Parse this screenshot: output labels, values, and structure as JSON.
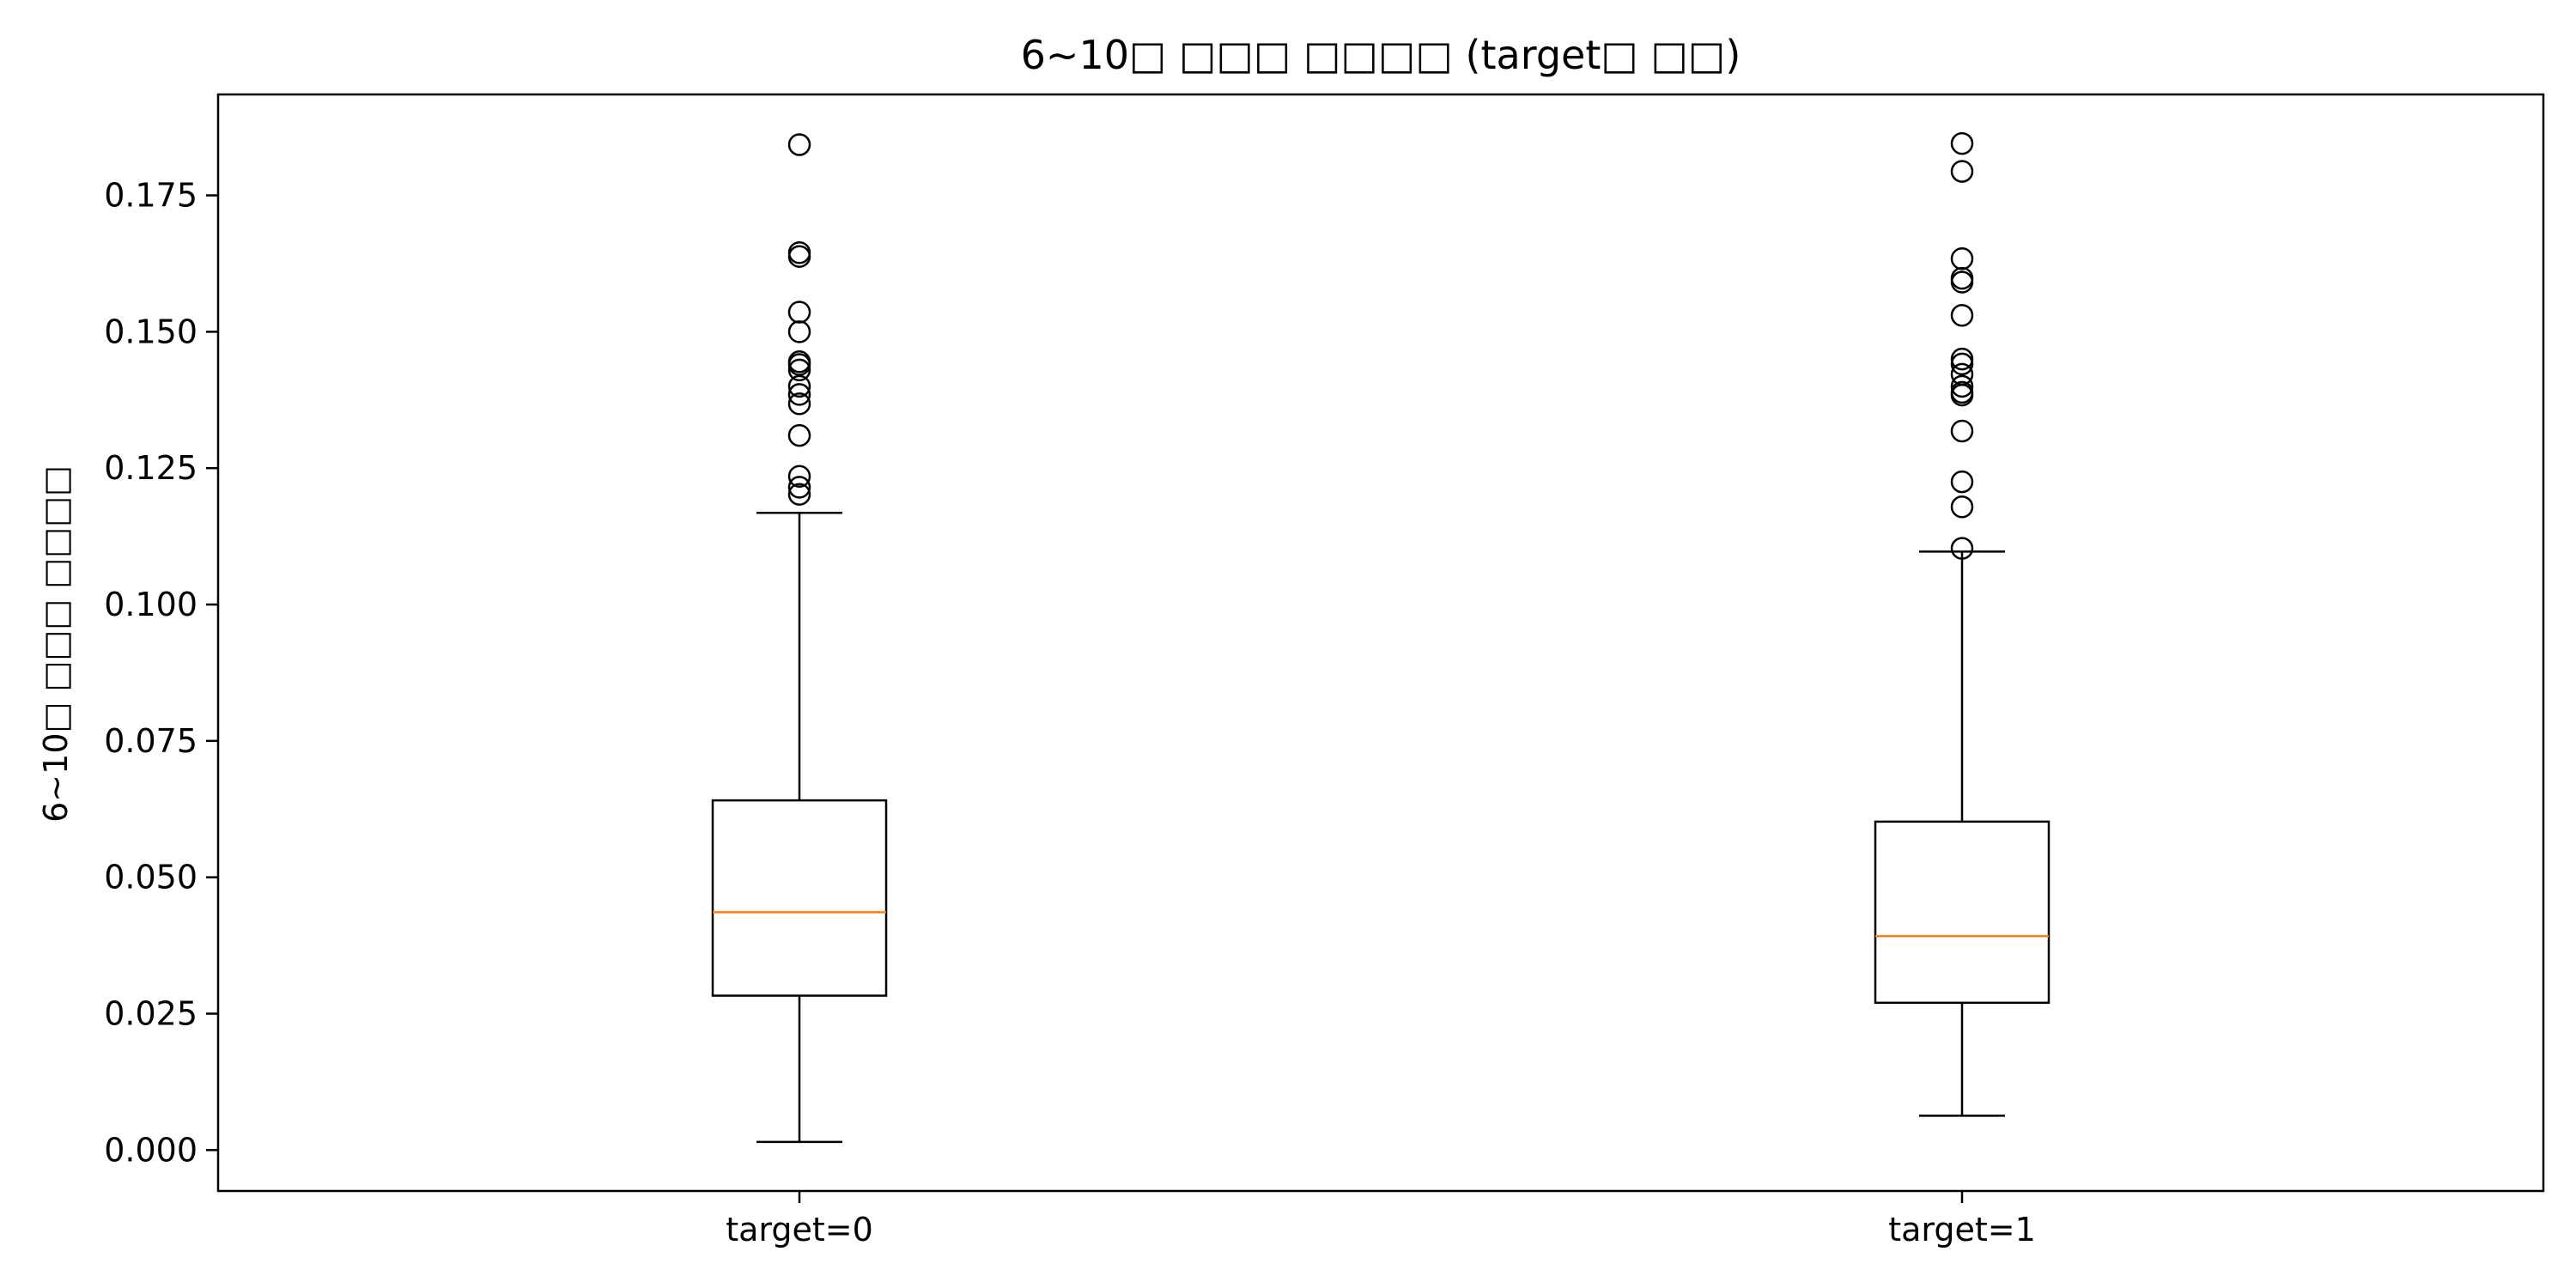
{
  "chart_data": {
    "type": "box",
    "title": "6~10□ □□□ □□□□ (target□ □□)",
    "xlabel": "",
    "ylabel": "6~10□ □□□ □□□□",
    "ylim": [
      -0.0075,
      0.1935
    ],
    "yticks": [
      0.0,
      0.025,
      0.05,
      0.075,
      0.1,
      0.125,
      0.15,
      0.175
    ],
    "ytick_labels": [
      "0.000",
      "0.025",
      "0.050",
      "0.075",
      "0.100",
      "0.125",
      "0.150",
      "0.175"
    ],
    "categories": [
      "target=0",
      "target=1"
    ],
    "boxes": [
      {
        "category": "target=0",
        "whisker_low": 0.0015,
        "q1": 0.0283,
        "median": 0.0436,
        "q3": 0.0641,
        "whisker_high": 0.1168,
        "outliers": [
          0.1843,
          0.1645,
          0.1638,
          0.1536,
          0.15,
          0.1445,
          0.144,
          0.143,
          0.14,
          0.1385,
          0.1368,
          0.131,
          0.1235,
          0.1215,
          0.1202
        ]
      },
      {
        "category": "target=1",
        "whisker_low": 0.0063,
        "q1": 0.027,
        "median": 0.0392,
        "q3": 0.0602,
        "whisker_high": 0.1097,
        "outliers": [
          0.1845,
          0.1794,
          0.1634,
          0.1598,
          0.1591,
          0.153,
          0.145,
          0.1441,
          0.1422,
          0.14,
          0.1389,
          0.1384,
          0.1318,
          0.1225,
          0.1179,
          0.1103
        ]
      }
    ],
    "colors": {
      "box": "#000000",
      "median": "#ff7f0e",
      "background": "#ffffff"
    },
    "grid": false,
    "legend": "none"
  }
}
